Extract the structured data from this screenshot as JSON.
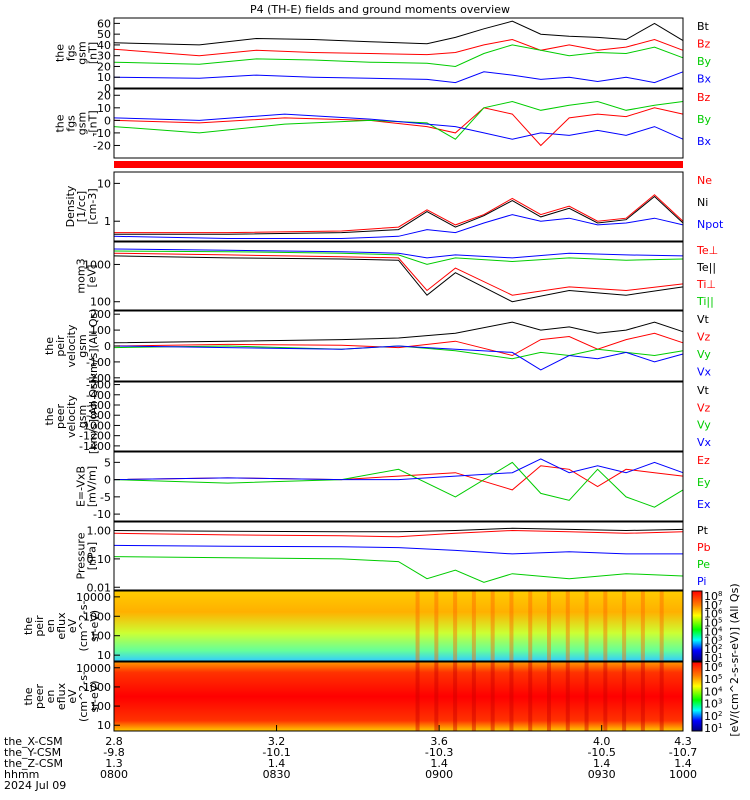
{
  "title": "P4 (TH-E) fields and ground moments overview",
  "x_axis": {
    "rows": [
      {
        "label": "the_X-CSM",
        "values": [
          "2.8",
          "3.2",
          "3.6",
          "4.0",
          "4.3"
        ]
      },
      {
        "label": "the_Y-CSM",
        "values": [
          "-9.8",
          "-10.1",
          "-10.3",
          "-10.5",
          "-10.7"
        ]
      },
      {
        "label": "the_Z-CSM",
        "values": [
          "1.3",
          "1.4",
          "1.4",
          "1.4",
          "1.4"
        ]
      },
      {
        "label": "hhmm",
        "values": [
          "0800",
          "0830",
          "0900",
          "0930",
          "1000"
        ]
      }
    ],
    "date": "2024 Jul 09"
  },
  "colors": {
    "black": "#000000",
    "red": "#ff0000",
    "green": "#00cc00",
    "blue": "#0000ff"
  },
  "chart_data": [
    {
      "type": "line",
      "name": "fgs-gsm-magnitude",
      "ylabel": [
        "the",
        "fgs",
        "gsm",
        "[nT]"
      ],
      "yticks": [
        "60",
        "50",
        "40",
        "30",
        "20",
        "10",
        "0"
      ],
      "ylim": [
        0,
        65
      ],
      "legend": [
        {
          "label": "Bt",
          "color": "#000000"
        },
        {
          "label": "Bz",
          "color": "#ff0000"
        },
        {
          "label": "By",
          "color": "#00cc00"
        },
        {
          "label": "Bx",
          "color": "#0000ff"
        }
      ],
      "series": [
        {
          "color": "#000000",
          "x": [
            0,
            0.15,
            0.25,
            0.35,
            0.45,
            0.55,
            0.6,
            0.65,
            0.7,
            0.75,
            0.8,
            0.85,
            0.9,
            0.95,
            1.0
          ],
          "y": [
            42,
            40,
            46,
            45,
            43,
            41,
            47,
            55,
            62,
            50,
            48,
            47,
            45,
            60,
            44
          ]
        },
        {
          "color": "#ff0000",
          "x": [
            0,
            0.15,
            0.25,
            0.35,
            0.45,
            0.55,
            0.6,
            0.65,
            0.7,
            0.75,
            0.8,
            0.85,
            0.9,
            0.95,
            1.0
          ],
          "y": [
            36,
            30,
            35,
            33,
            32,
            31,
            33,
            40,
            45,
            35,
            40,
            35,
            38,
            45,
            35
          ]
        },
        {
          "color": "#00cc00",
          "x": [
            0,
            0.15,
            0.25,
            0.35,
            0.45,
            0.55,
            0.6,
            0.65,
            0.7,
            0.75,
            0.8,
            0.85,
            0.9,
            0.95,
            1.0
          ],
          "y": [
            24,
            22,
            27,
            26,
            24,
            23,
            20,
            32,
            40,
            35,
            30,
            33,
            32,
            38,
            28
          ]
        },
        {
          "color": "#0000ff",
          "x": [
            0,
            0.15,
            0.25,
            0.35,
            0.45,
            0.55,
            0.6,
            0.65,
            0.7,
            0.75,
            0.8,
            0.85,
            0.9,
            0.95,
            1.0
          ],
          "y": [
            10,
            9,
            12,
            10,
            9,
            8,
            5,
            15,
            12,
            8,
            10,
            6,
            10,
            5,
            15
          ]
        }
      ]
    },
    {
      "type": "line",
      "name": "fgs-gsm-components",
      "ylabel": [
        "the",
        "fgs",
        "gsm",
        "-[nT]"
      ],
      "yticks": [
        "20",
        "10",
        "0",
        "-10",
        "-20"
      ],
      "ylim": [
        -30,
        25
      ],
      "legend": [
        {
          "label": "Bz",
          "color": "#ff0000"
        },
        {
          "label": "By",
          "color": "#00cc00"
        },
        {
          "label": "Bx",
          "color": "#0000ff"
        }
      ],
      "series": [
        {
          "color": "#ff0000",
          "x": [
            0,
            0.15,
            0.3,
            0.45,
            0.55,
            0.6,
            0.65,
            0.7,
            0.75,
            0.8,
            0.85,
            0.9,
            0.95,
            1.0
          ],
          "y": [
            0,
            -2,
            2,
            0,
            -5,
            -10,
            10,
            5,
            -20,
            2,
            5,
            3,
            10,
            5
          ]
        },
        {
          "color": "#00cc00",
          "x": [
            0,
            0.15,
            0.3,
            0.45,
            0.55,
            0.6,
            0.65,
            0.7,
            0.75,
            0.8,
            0.85,
            0.9,
            0.95,
            1.0
          ],
          "y": [
            -5,
            -10,
            -3,
            0,
            -2,
            -15,
            10,
            15,
            8,
            12,
            15,
            8,
            12,
            15
          ]
        },
        {
          "color": "#0000ff",
          "x": [
            0,
            0.15,
            0.3,
            0.45,
            0.55,
            0.6,
            0.65,
            0.7,
            0.75,
            0.8,
            0.85,
            0.9,
            0.95,
            1.0
          ],
          "y": [
            2,
            0,
            5,
            1,
            -3,
            -5,
            -10,
            -15,
            -10,
            -12,
            -8,
            -12,
            -5,
            -15
          ]
        }
      ]
    },
    {
      "type": "line",
      "name": "density",
      "ylabel": [
        "Density",
        "[1/cc]",
        "[cm-3]"
      ],
      "yticks": [
        "10",
        "1"
      ],
      "yscale": "log",
      "ylim": [
        0.3,
        20
      ],
      "legend": [
        {
          "label": "Ne",
          "color": "#ff0000"
        },
        {
          "label": "Ni",
          "color": "#000000"
        },
        {
          "label": "Npot",
          "color": "#0000ff"
        }
      ],
      "series": [
        {
          "color": "#ff0000",
          "x": [
            0,
            0.2,
            0.4,
            0.5,
            0.55,
            0.6,
            0.65,
            0.7,
            0.75,
            0.8,
            0.85,
            0.9,
            0.95,
            1.0
          ],
          "y": [
            0.5,
            0.5,
            0.55,
            0.7,
            2.0,
            0.8,
            1.5,
            4.0,
            1.5,
            2.5,
            1.0,
            1.2,
            5.0,
            1.0
          ]
        },
        {
          "color": "#000000",
          "x": [
            0,
            0.2,
            0.4,
            0.5,
            0.55,
            0.6,
            0.65,
            0.7,
            0.75,
            0.8,
            0.85,
            0.9,
            0.95,
            1.0
          ],
          "y": [
            0.45,
            0.45,
            0.5,
            0.6,
            1.8,
            0.7,
            1.4,
            3.5,
            1.3,
            2.2,
            0.9,
            1.1,
            4.5,
            0.9
          ]
        },
        {
          "color": "#0000ff",
          "x": [
            0,
            0.2,
            0.4,
            0.5,
            0.55,
            0.6,
            0.65,
            0.7,
            0.75,
            0.8,
            0.85,
            0.9,
            0.95,
            1.0
          ],
          "y": [
            0.4,
            0.35,
            0.35,
            0.4,
            0.6,
            0.5,
            0.9,
            1.5,
            1.0,
            1.2,
            0.8,
            0.9,
            1.2,
            0.8
          ]
        }
      ]
    },
    {
      "type": "line",
      "name": "temperature",
      "ylabel": [
        "mom3",
        "[eV]"
      ],
      "yticks": [
        "1000",
        "100"
      ],
      "yscale": "log",
      "ylim": [
        60,
        4000
      ],
      "legend": [
        {
          "label": "Te⊥",
          "color": "#ff0000"
        },
        {
          "label": "Te||",
          "color": "#000000"
        },
        {
          "label": "Ti⊥",
          "color": "#ff0000"
        },
        {
          "label": "Ti||",
          "color": "#00cc00"
        }
      ],
      "series": [
        {
          "color": "#0000ff",
          "x": [
            0,
            0.2,
            0.4,
            0.5,
            0.55,
            0.6,
            0.7,
            0.8,
            0.9,
            1.0
          ],
          "y": [
            2600,
            2400,
            2200,
            2000,
            1500,
            1800,
            1500,
            2000,
            1800,
            1700
          ]
        },
        {
          "color": "#00cc00",
          "x": [
            0,
            0.2,
            0.4,
            0.5,
            0.55,
            0.6,
            0.7,
            0.8,
            0.9,
            1.0
          ],
          "y": [
            2300,
            2200,
            2000,
            1800,
            1000,
            1500,
            1200,
            1500,
            1300,
            1400
          ]
        },
        {
          "color": "#ff0000",
          "x": [
            0,
            0.2,
            0.4,
            0.5,
            0.55,
            0.6,
            0.7,
            0.8,
            0.9,
            1.0
          ],
          "y": [
            2000,
            1800,
            1600,
            1500,
            200,
            800,
            150,
            250,
            200,
            300
          ]
        },
        {
          "color": "#000000",
          "x": [
            0,
            0.2,
            0.4,
            0.5,
            0.55,
            0.6,
            0.7,
            0.8,
            0.9,
            1.0
          ],
          "y": [
            1700,
            1500,
            1400,
            1300,
            150,
            600,
            100,
            200,
            150,
            250
          ]
        }
      ]
    },
    {
      "type": "line",
      "name": "peir-velocity",
      "ylabel": [
        "the",
        "peir",
        "velocity",
        "gsm",
        "[km/s](All Qs)"
      ],
      "yticks": [
        "200",
        "100",
        "0",
        "-100",
        "-200"
      ],
      "ylim": [
        -220,
        220
      ],
      "legend": [
        {
          "label": "Vt",
          "color": "#000000"
        },
        {
          "label": "Vz",
          "color": "#ff0000"
        },
        {
          "label": "Vy",
          "color": "#00cc00"
        },
        {
          "label": "Vx",
          "color": "#0000ff"
        }
      ],
      "series": [
        {
          "color": "#000000",
          "x": [
            0,
            0.2,
            0.4,
            0.5,
            0.6,
            0.7,
            0.75,
            0.8,
            0.85,
            0.9,
            0.95,
            1.0
          ],
          "y": [
            20,
            30,
            40,
            50,
            80,
            150,
            100,
            120,
            80,
            100,
            150,
            90
          ]
        },
        {
          "color": "#ff0000",
          "x": [
            0,
            0.2,
            0.4,
            0.5,
            0.6,
            0.7,
            0.75,
            0.8,
            0.85,
            0.9,
            0.95,
            1.0
          ],
          "y": [
            0,
            10,
            5,
            -10,
            30,
            -60,
            40,
            60,
            -20,
            40,
            80,
            20
          ]
        },
        {
          "color": "#00cc00",
          "x": [
            0,
            0.2,
            0.4,
            0.5,
            0.6,
            0.7,
            0.75,
            0.8,
            0.85,
            0.9,
            0.95,
            1.0
          ],
          "y": [
            -10,
            0,
            -20,
            0,
            -30,
            -80,
            -40,
            -60,
            -20,
            -40,
            -60,
            -30
          ]
        },
        {
          "color": "#0000ff",
          "x": [
            0,
            0.2,
            0.4,
            0.5,
            0.6,
            0.7,
            0.75,
            0.8,
            0.85,
            0.9,
            0.95,
            1.0
          ],
          "y": [
            0,
            -10,
            -20,
            0,
            -20,
            -40,
            -150,
            -60,
            -80,
            -40,
            -100,
            -50
          ]
        }
      ]
    },
    {
      "type": "line",
      "name": "peer-velocity",
      "ylabel": [
        "the",
        "peer",
        "velocity",
        "gsm",
        "[km/s](All Qs)"
      ],
      "yticks": [
        "-200",
        "-400",
        "-600",
        "-800",
        "-1000",
        "-1200",
        "-1400"
      ],
      "ylim": [
        -1500,
        -150
      ],
      "legend": [
        {
          "label": "Vt",
          "color": "#000000"
        },
        {
          "label": "Vz",
          "color": "#ff0000"
        },
        {
          "label": "Vy",
          "color": "#00cc00"
        },
        {
          "label": "Vx",
          "color": "#0000ff"
        }
      ],
      "series": []
    },
    {
      "type": "line",
      "name": "electric-field",
      "ylabel": [
        "E=-VxB",
        "[mV/m]"
      ],
      "yticks": [
        "5",
        "0",
        "-5",
        "-10"
      ],
      "ylim": [
        -12,
        8
      ],
      "legend": [
        {
          "label": "Ez",
          "color": "#ff0000"
        },
        {
          "label": "Ey",
          "color": "#00cc00"
        },
        {
          "label": "Ex",
          "color": "#0000ff"
        }
      ],
      "series": [
        {
          "color": "#ff0000",
          "x": [
            0,
            0.2,
            0.4,
            0.5,
            0.6,
            0.7,
            0.75,
            0.8,
            0.85,
            0.9,
            0.95,
            1.0
          ],
          "y": [
            0,
            0.5,
            0,
            1,
            2,
            -3,
            4,
            3,
            -2,
            3,
            2,
            1
          ]
        },
        {
          "color": "#00cc00",
          "x": [
            0,
            0.2,
            0.4,
            0.5,
            0.6,
            0.7,
            0.75,
            0.8,
            0.85,
            0.9,
            0.95,
            1.0
          ],
          "y": [
            0,
            -1,
            0,
            3,
            -5,
            5,
            -4,
            -6,
            3,
            -5,
            -8,
            -3
          ]
        },
        {
          "color": "#0000ff",
          "x": [
            0,
            0.2,
            0.4,
            0.5,
            0.6,
            0.7,
            0.75,
            0.8,
            0.85,
            0.9,
            0.95,
            1.0
          ],
          "y": [
            0,
            0.5,
            0,
            0,
            1,
            2,
            6,
            2,
            4,
            2,
            5,
            2
          ]
        }
      ]
    },
    {
      "type": "line",
      "name": "pressure",
      "ylabel": [
        "Pressure",
        "[nPa]"
      ],
      "yticks": [
        "1.00",
        "0.10",
        "0.01"
      ],
      "yscale": "log",
      "ylim": [
        0.008,
        2
      ],
      "legend": [
        {
          "label": "Pt",
          "color": "#000000"
        },
        {
          "label": "Pb",
          "color": "#ff0000"
        },
        {
          "label": "Pe",
          "color": "#00cc00"
        },
        {
          "label": "Pi",
          "color": "#0000ff"
        }
      ],
      "series": [
        {
          "color": "#000000",
          "x": [
            0,
            0.2,
            0.4,
            0.5,
            0.6,
            0.7,
            0.8,
            0.9,
            1.0
          ],
          "y": [
            1.0,
            0.95,
            0.9,
            0.9,
            1.0,
            1.2,
            1.1,
            1.0,
            1.1
          ]
        },
        {
          "color": "#ff0000",
          "x": [
            0,
            0.2,
            0.4,
            0.5,
            0.6,
            0.7,
            0.8,
            0.9,
            1.0
          ],
          "y": [
            0.8,
            0.7,
            0.65,
            0.6,
            0.8,
            1.0,
            0.9,
            0.8,
            0.9
          ]
        },
        {
          "color": "#0000ff",
          "x": [
            0,
            0.2,
            0.4,
            0.5,
            0.6,
            0.7,
            0.8,
            0.9,
            1.0
          ],
          "y": [
            0.3,
            0.28,
            0.27,
            0.25,
            0.2,
            0.15,
            0.18,
            0.15,
            0.15
          ]
        },
        {
          "color": "#00cc00",
          "x": [
            0,
            0.2,
            0.4,
            0.5,
            0.55,
            0.6,
            0.65,
            0.7,
            0.8,
            0.9,
            1.0
          ],
          "y": [
            0.12,
            0.11,
            0.1,
            0.08,
            0.02,
            0.04,
            0.015,
            0.03,
            0.02,
            0.03,
            0.025
          ]
        }
      ]
    },
    {
      "type": "heatmap",
      "name": "peir-eflux",
      "ylabel": [
        "the",
        "peir",
        "en",
        "eflux",
        "eV",
        "(cm^2-s-",
        "sr-eV)"
      ],
      "yticks": [
        "10000",
        "1000",
        "100",
        "10"
      ],
      "yscale": "log"
    },
    {
      "type": "heatmap",
      "name": "peer-eflux",
      "ylabel": [
        "the",
        "peer",
        "en",
        "eflux",
        "eV",
        "(cm^2-s-",
        "sr-eV)"
      ],
      "yticks": [
        "10000",
        "1000",
        "100",
        "10"
      ],
      "yscale": "log"
    }
  ],
  "colorbar": {
    "label": "[eV/(cm^2-s-sr-eV)] (All Qs)",
    "ticks": [
      "10^8",
      "10^7",
      "10^6",
      "10^5",
      "10^4",
      "10^3",
      "10^2",
      "10^1"
    ]
  }
}
